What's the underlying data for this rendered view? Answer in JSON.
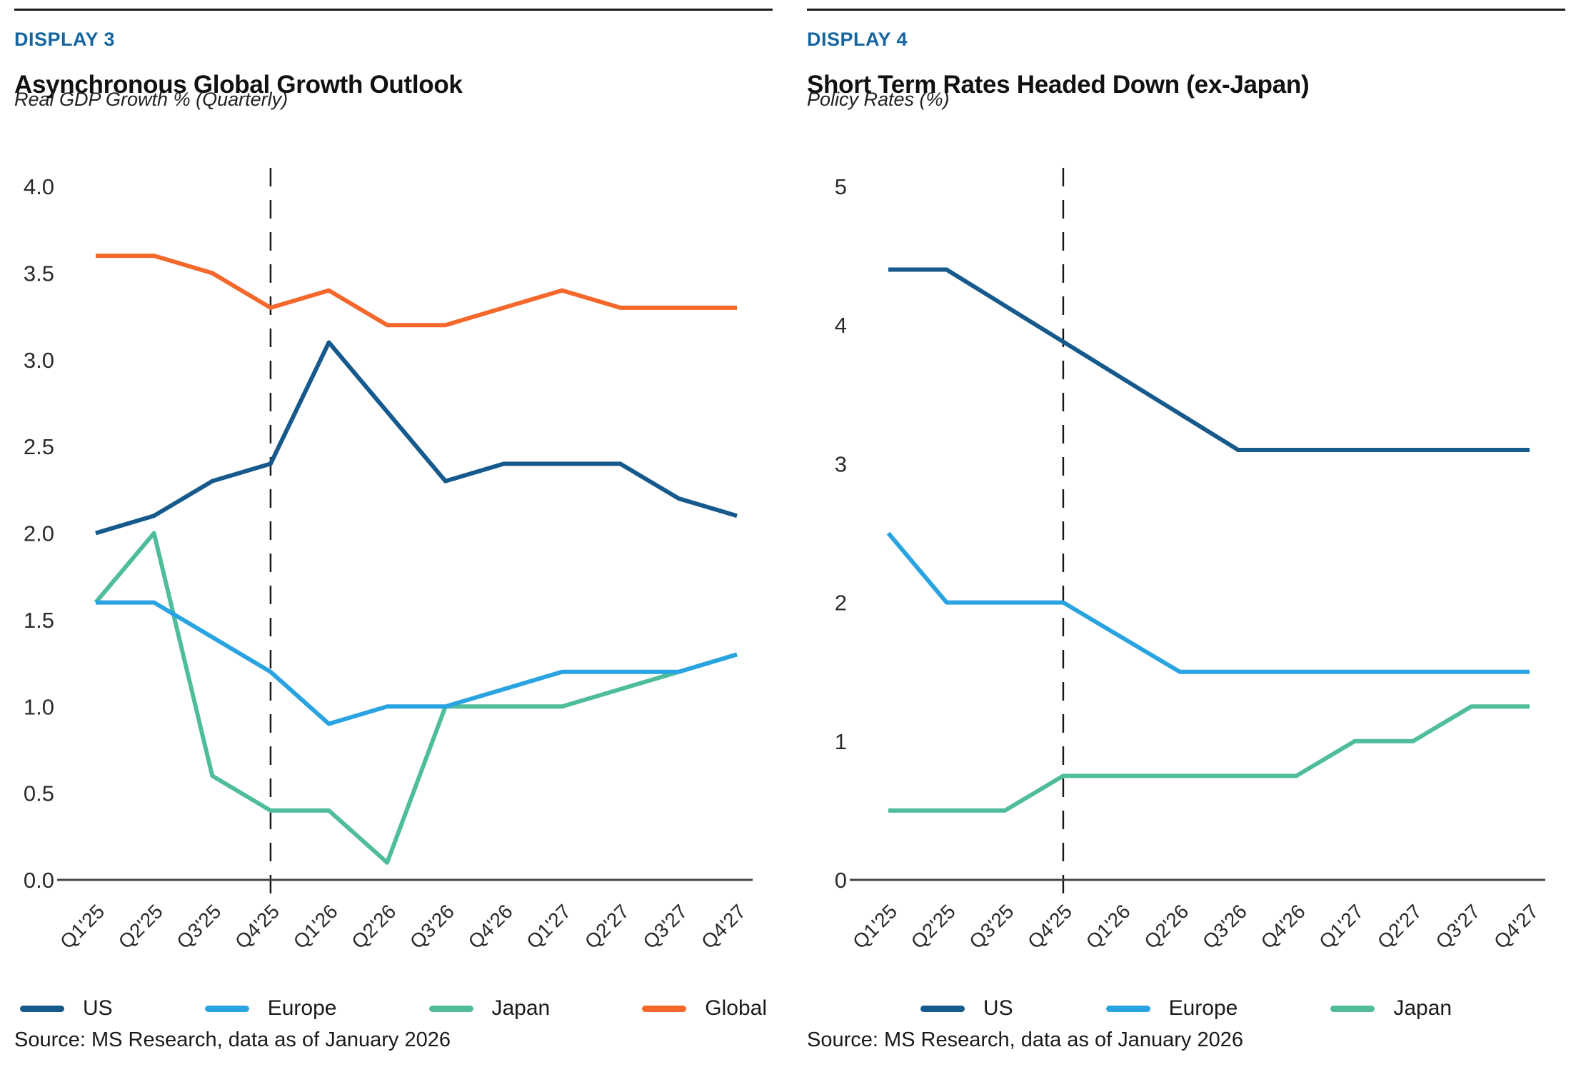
{
  "panels": [
    {
      "display_label": "DISPLAY 3",
      "title": "Asynchronous Global Growth Outlook",
      "subtitle": "Real GDP Growth % (Quarterly)",
      "source": "Source: MS Research, data as of January 2026"
    },
    {
      "display_label": "DISPLAY 4",
      "title": "Short Term Rates Headed Down (ex-Japan)",
      "subtitle": "Policy Rates (%)",
      "source": "Source: MS Research, data as of January 2026"
    }
  ],
  "colors": {
    "display_label": "#1566A0",
    "rule": "#1a1a1a",
    "axis": "#444444",
    "tick_text": "#2b2b2b",
    "dashed_line": "#1a1a1a",
    "us": "#16598C",
    "europe": "#2AA4E1",
    "japan": "#4FBD9C",
    "global": "#F4692B"
  },
  "chart_data": [
    {
      "type": "line",
      "title": "Asynchronous Global Growth Outlook",
      "ylabel": "Real GDP Growth % (Quarterly)",
      "xlabel": "",
      "grid": false,
      "legend_position": "bottom",
      "categories": [
        "Q1'25",
        "Q2'25",
        "Q3'25",
        "Q4'25",
        "Q1'26",
        "Q2'26",
        "Q3'26",
        "Q4'26",
        "Q1'27",
        "Q2'27",
        "Q3'27",
        "Q4'27"
      ],
      "series": [
        {
          "name": "US",
          "color": "#16598C",
          "values": [
            2.0,
            2.1,
            2.3,
            2.4,
            3.1,
            2.7,
            2.3,
            2.4,
            2.4,
            2.4,
            2.2,
            2.1
          ]
        },
        {
          "name": "Europe",
          "color": "#2AA4E1",
          "values": [
            1.6,
            1.6,
            1.4,
            1.2,
            0.9,
            1.0,
            1.0,
            1.1,
            1.2,
            1.2,
            1.2,
            1.3
          ]
        },
        {
          "name": "Japan",
          "color": "#4FBD9C",
          "values": [
            1.6,
            2.0,
            0.6,
            0.4,
            0.4,
            0.1,
            1.0,
            1.0,
            1.0,
            1.1,
            1.2,
            1.3
          ]
        },
        {
          "name": "Global",
          "color": "#F4692B",
          "values": [
            3.6,
            3.6,
            3.5,
            3.3,
            3.4,
            3.2,
            3.2,
            3.3,
            3.4,
            3.3,
            3.3,
            3.3
          ]
        }
      ],
      "draw_order": [
        "Global",
        "US",
        "Japan",
        "Europe"
      ],
      "ylim": [
        0,
        4
      ],
      "yticks": [
        {
          "v": 4.0,
          "label": "4.0"
        },
        {
          "v": 3.5,
          "label": "3.5"
        },
        {
          "v": 3.0,
          "label": "3.0"
        },
        {
          "v": 2.5,
          "label": "2.5"
        },
        {
          "v": 2.0,
          "label": "2.0"
        },
        {
          "v": 1.5,
          "label": "1.5"
        },
        {
          "v": 1.0,
          "label": "1.0"
        },
        {
          "v": 0.5,
          "label": "0.5"
        },
        {
          "v": 0.0,
          "label": "0.0"
        }
      ],
      "vline_at": "Q4'25"
    },
    {
      "type": "line",
      "title": "Short Term Rates Headed Down (ex-Japan)",
      "ylabel": "Policy Rates (%)",
      "xlabel": "",
      "grid": false,
      "legend_position": "bottom",
      "categories": [
        "Q1'25",
        "Q2'25",
        "Q3'25",
        "Q4'25",
        "Q1'26",
        "Q2'26",
        "Q3'26",
        "Q4'26",
        "Q1'27",
        "Q2'27",
        "Q3'27",
        "Q4'27"
      ],
      "series": [
        {
          "name": "US",
          "color": "#16598C",
          "values": [
            4.4,
            4.4,
            4.14,
            3.88,
            3.62,
            3.36,
            3.1,
            3.1,
            3.1,
            3.1,
            3.1,
            3.1
          ]
        },
        {
          "name": "Europe",
          "color": "#2AA4E1",
          "values": [
            2.5,
            2.0,
            2.0,
            2.0,
            1.75,
            1.5,
            1.5,
            1.5,
            1.5,
            1.5,
            1.5,
            1.5
          ]
        },
        {
          "name": "Japan",
          "color": "#4FBD9C",
          "values": [
            0.5,
            0.5,
            0.5,
            0.75,
            0.75,
            0.75,
            0.75,
            0.75,
            1.0,
            1.0,
            1.25,
            1.25
          ]
        }
      ],
      "draw_order": [
        "US",
        "Europe",
        "Japan"
      ],
      "ylim": [
        0,
        5
      ],
      "yticks": [
        {
          "v": 5,
          "label": "5"
        },
        {
          "v": 4,
          "label": "4"
        },
        {
          "v": 3,
          "label": "3"
        },
        {
          "v": 2,
          "label": "2"
        },
        {
          "v": 1,
          "label": "1"
        },
        {
          "v": 0,
          "label": "0"
        }
      ],
      "vline_at": "Q4'25"
    }
  ]
}
